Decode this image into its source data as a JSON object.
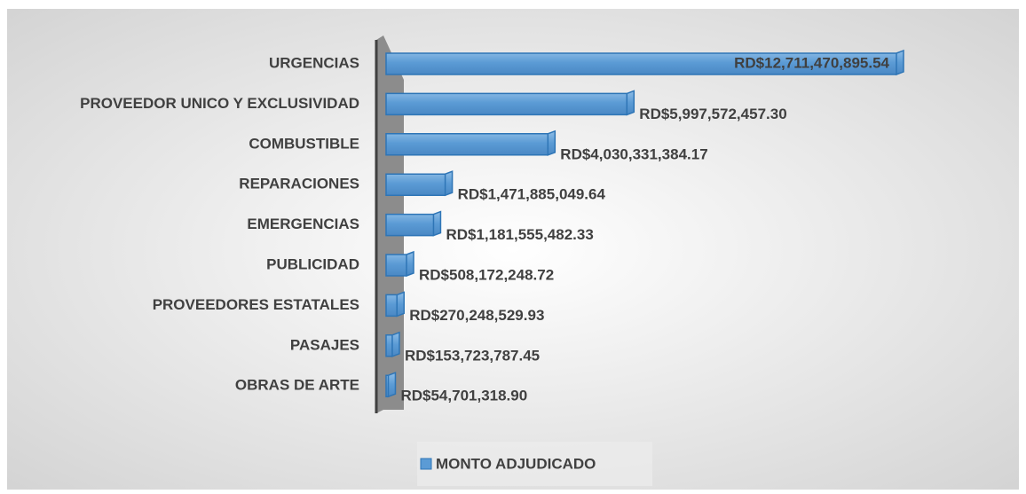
{
  "chart_data": {
    "type": "bar",
    "orientation": "horizontal",
    "categories": [
      "URGENCIAS",
      "PROVEEDOR UNICO Y EXCLUSIVIDAD",
      "COMBUSTIBLE",
      "REPARACIONES",
      "EMERGENCIAS",
      "PUBLICIDAD",
      "PROVEEDORES ESTATALES",
      "PASAJES",
      "OBRAS DE ARTE"
    ],
    "series": [
      {
        "name": "MONTO ADJUDICADO",
        "color": "#5b9bd5",
        "values": [
          12711470895.54,
          5997572457.3,
          4030331384.17,
          1471885049.64,
          1181555482.33,
          508172248.72,
          270248529.93,
          153723787.45,
          54701318.9
        ],
        "value_labels": [
          "RD$12,711,470,895.54",
          "RD$5,997,572,457.30",
          "RD$4,030,331,384.17",
          "RD$1,471,885,049.64",
          "RD$1,181,555,482.33",
          "RD$508,172,248.72",
          "RD$270,248,529.93",
          "RD$153,723,787.45",
          "RD$54,701,318.90"
        ]
      }
    ],
    "legend": "bottom"
  }
}
